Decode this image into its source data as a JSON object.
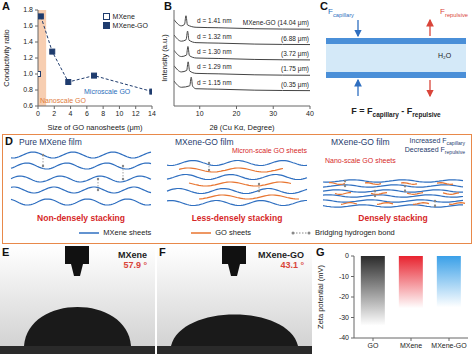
{
  "chart_data": [
    {
      "panel": "A",
      "type": "line",
      "x_label": "Size of GO nanosheets (μm)",
      "y_label": "Conductivity ratio",
      "xlim": [
        0,
        14
      ],
      "xticks": [
        0,
        2,
        4,
        6,
        8,
        10,
        12,
        14
      ],
      "ylim": [
        0.6,
        1.8
      ],
      "yticks": [
        0.6,
        0.8,
        {
          "value": 1,
          "label": "1.0"
        },
        1.2,
        1.4,
        1.6,
        1.8
      ],
      "legend": "top-right",
      "regions": [
        {
          "label": "Nanoscale GO",
          "x": [
            0,
            1
          ],
          "color": "#f6c9a8"
        }
      ],
      "annotations": [
        {
          "text": "Microscale GO",
          "color": "#2a6ebb"
        }
      ],
      "series": [
        {
          "name": "MXene",
          "type": "scatter",
          "marker": "square-open",
          "color": "#1f3c6e",
          "x": [
            0
          ],
          "values": [
            1.0
          ]
        },
        {
          "name": "MXene-GO",
          "type": "line",
          "marker": "square",
          "line_style": "dashed",
          "color": "#1f3c6e",
          "x": [
            0.35,
            1.75,
            3.72,
            6.88,
            14.04
          ],
          "values": [
            1.72,
            1.28,
            0.9,
            0.98,
            0.78
          ]
        }
      ]
    },
    {
      "panel": "B",
      "type": "line",
      "x_label": "2θ (Cu Kα, Degree)",
      "y_label": "Intensity (a.u.)",
      "xlim": [
        3,
        40
      ],
      "xticks": [
        10,
        20,
        30,
        40
      ],
      "ylim": [
        0,
        10
      ],
      "tick_labels": "x",
      "series": [
        {
          "name": "MXene-GO (14.04 μm)",
          "d_spacing": "d = 1.41 nm",
          "color": "#444444",
          "x": [
            3,
            5,
            5.86,
            6.26,
            6.66,
            9,
            15,
            25,
            40
          ],
          "values": [
            9.0,
            8.35,
            8.5,
            9.4,
            8.45,
            8.2,
            8.15,
            8.05,
            8.0
          ]
        },
        {
          "name": "(6.88 μm)",
          "d_spacing": "d = 1.32 nm",
          "color": "#444444",
          "x": [
            3,
            5,
            6.29,
            6.69,
            7.09,
            9,
            15,
            25,
            40
          ],
          "values": [
            7.4,
            6.75,
            6.9,
            7.8,
            6.85,
            6.6,
            6.55,
            6.45,
            6.4
          ]
        },
        {
          "name": "(3.72 μm)",
          "d_spacing": "d = 1.30 nm",
          "color": "#444444",
          "x": [
            3,
            5,
            6.39,
            6.79,
            7.19,
            9,
            15,
            25,
            40
          ],
          "values": [
            5.8,
            5.15,
            5.3,
            6.2,
            5.25,
            5.0,
            4.95,
            4.85,
            4.8
          ]
        },
        {
          "name": "(1.75 μm)",
          "d_spacing": "d = 1.29 nm",
          "color": "#444444",
          "x": [
            3,
            5,
            6.45,
            6.85,
            7.25,
            9,
            15,
            25,
            40
          ],
          "values": [
            4.2,
            3.55,
            3.7,
            4.6,
            3.65,
            3.4,
            3.35,
            3.25,
            3.2
          ]
        },
        {
          "name": "(0.35 μm)",
          "d_spacing": "d = 1.15 nm",
          "color": "#444444",
          "x": [
            3,
            5,
            7.28,
            7.68,
            8.08,
            9,
            15,
            25,
            40
          ],
          "values": [
            2.6,
            1.95,
            2.1,
            3.0,
            2.05,
            1.8,
            1.75,
            1.65,
            1.6
          ]
        }
      ]
    },
    {
      "panel": "G",
      "type": "bar",
      "y_label": "Zeta potential (mV)",
      "categories": [
        "GO",
        "MXene",
        "MXene-GO"
      ],
      "values": [
        -34,
        -25.5,
        -25
      ],
      "colors": [
        "#2b2b2b",
        "#e8232f",
        "#3aa0e8"
      ],
      "ylim": [
        -40,
        0
      ],
      "yticks": [
        -40,
        -30,
        -20,
        -10,
        0
      ]
    }
  ],
  "diagram": {
    "C": {
      "panel": "C",
      "forces": [
        {
          "base": "F",
          "sub": "capillary"
        },
        {
          "base": "F",
          "sub": "repulsive"
        }
      ],
      "water": "H₂O",
      "equation": [
        {
          "base": "F"
        },
        {
          "base": " = "
        },
        {
          "base": "F",
          "sub": "capillary"
        },
        {
          "base": " - "
        },
        {
          "base": "F",
          "sub": "repulsive"
        }
      ]
    },
    "D": {
      "panel": "D",
      "films": [
        {
          "title": "Pure MXene film",
          "caption": "Non-densely stacking",
          "notes": []
        },
        {
          "title": "MXene-GO film",
          "caption": "Less-densely stacking",
          "notes": [
            [
              {
                "base": "Micron-scale GO sheets"
              }
            ]
          ]
        },
        {
          "title": "MXene-GO film",
          "caption": "Densely stacking",
          "notes": [
            [
              {
                "base": "Increased F",
                "sub": "capillary"
              }
            ],
            [
              {
                "base": "Decreased F",
                "sub": "repulsive"
              }
            ],
            [
              {
                "base": "Nano-scale GO sheets"
              }
            ]
          ]
        }
      ],
      "legend_items": [
        "MXene sheets",
        "GO sheets",
        "Bridging hydrogen bond"
      ]
    },
    "E": {
      "panel": "E",
      "label": "MXene",
      "angle": "57.9 °"
    },
    "F": {
      "panel": "F",
      "label": "MXene-GO",
      "angle": "43.1 °"
    }
  }
}
